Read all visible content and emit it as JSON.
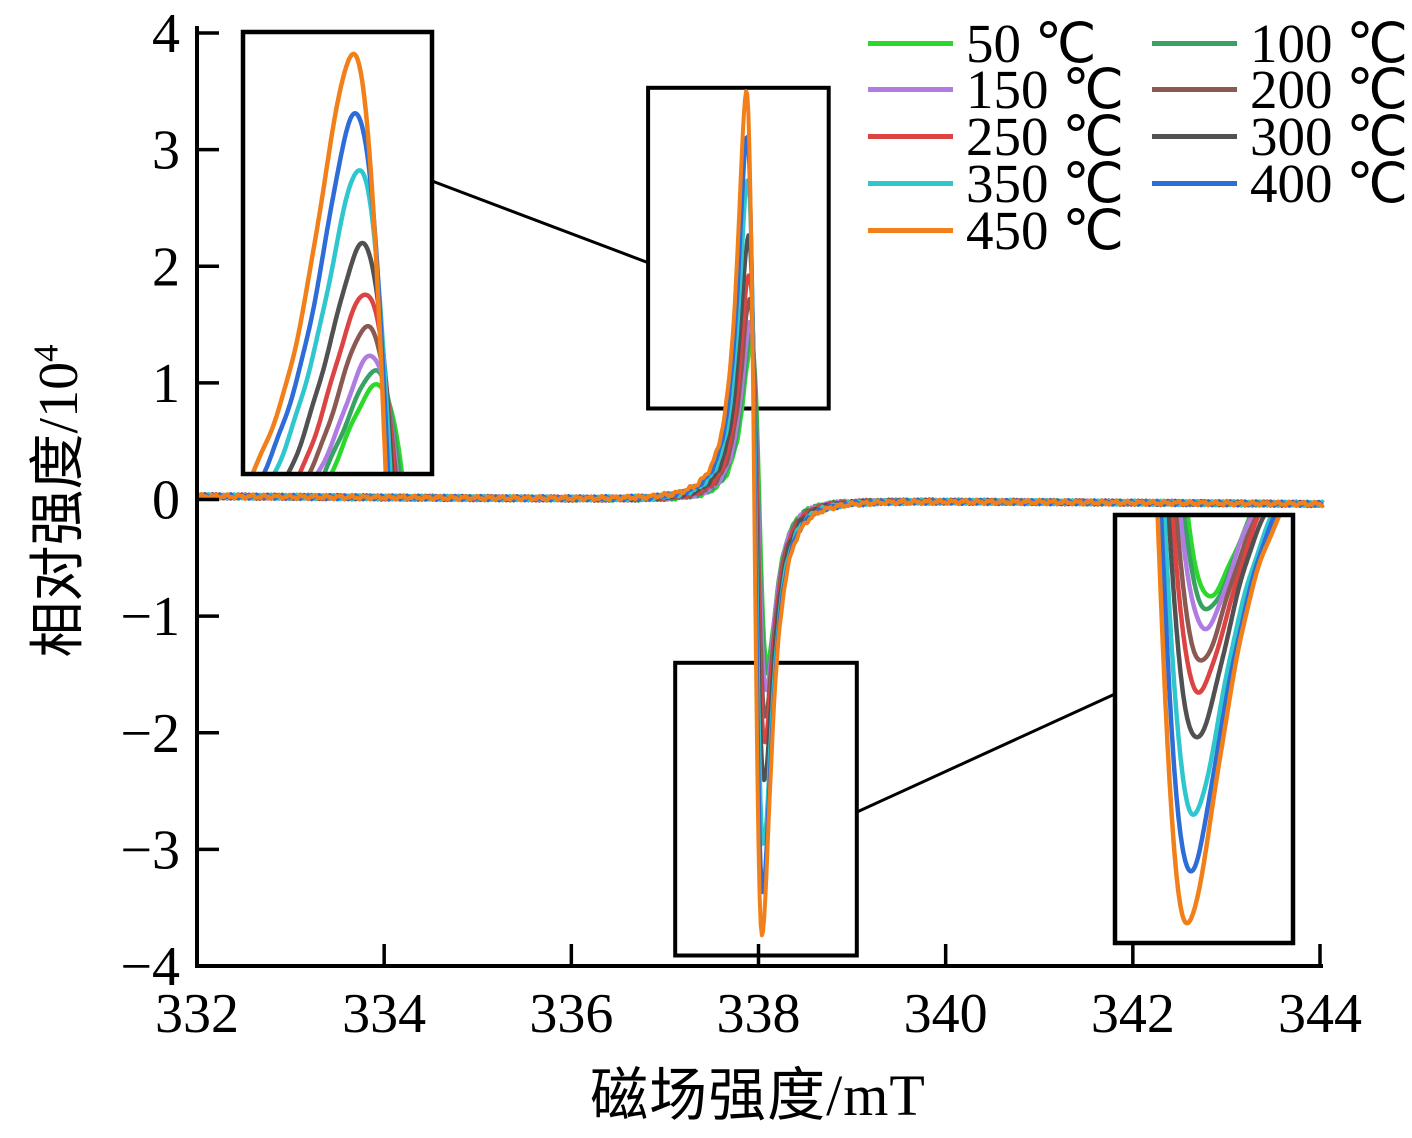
{
  "figure": {
    "x_label": "磁场强度/mT",
    "y_label_base": "相对强度/10",
    "y_label_exp": "4"
  },
  "chart_data": {
    "type": "line",
    "title": "",
    "xlabel": "磁场强度/mT",
    "ylabel": "相对强度/10⁴",
    "xlim": [
      332,
      344
    ],
    "ylim": [
      -4,
      4
    ],
    "x_ticks": [
      332,
      334,
      336,
      338,
      340,
      342,
      344
    ],
    "y_ticks": [
      4,
      3,
      2,
      1,
      0,
      -1,
      -2,
      -3,
      -4
    ],
    "grid": false,
    "legend_position": "top-right-two-columns",
    "lineshape": {
      "type": "lorentzian-derivative",
      "center_mT": 337.955,
      "half_width_mT": 0.147,
      "baseline_level_1e4": 0.0
    },
    "series": [
      {
        "name": "50 ℃",
        "color": "#2bd92b",
        "peak_height_1e4": 1.35,
        "trough_depth_1e4": -1.4,
        "center_offset_mT": 0.055
      },
      {
        "name": "100 ℃",
        "color": "#38a263",
        "peak_height_1e4": 1.43,
        "trough_depth_1e4": -1.5,
        "center_offset_mT": 0.048
      },
      {
        "name": "150 ℃",
        "color": "#b17ce1",
        "peak_height_1e4": 1.52,
        "trough_depth_1e4": -1.62,
        "center_offset_mT": 0.041
      },
      {
        "name": "200 ℃",
        "color": "#8a5a52",
        "peak_height_1e4": 1.72,
        "trough_depth_1e4": -1.85,
        "center_offset_mT": 0.034
      },
      {
        "name": "250 ℃",
        "color": "#dc4343",
        "peak_height_1e4": 1.95,
        "trough_depth_1e4": -2.08,
        "center_offset_mT": 0.028
      },
      {
        "name": "300 ℃",
        "color": "#515151",
        "peak_height_1e4": 2.26,
        "trough_depth_1e4": -2.42,
        "center_offset_mT": 0.021
      },
      {
        "name": "350 ℃",
        "color": "#2fc7cd",
        "peak_height_1e4": 2.74,
        "trough_depth_1e4": -2.95,
        "center_offset_mT": 0.014
      },
      {
        "name": "400 ℃",
        "color": "#2e6cd8",
        "peak_height_1e4": 3.12,
        "trough_depth_1e4": -3.35,
        "center_offset_mT": 0.007
      },
      {
        "name": "450 ℃",
        "color": "#f2801a",
        "peak_height_1e4": 3.52,
        "trough_depth_1e4": -3.74,
        "center_offset_mT": 0.0
      }
    ],
    "highlight_boxes": [
      {
        "region": "peak",
        "x_mT": [
          336.82,
          338.75
        ],
        "y_1e4": [
          0.78,
          3.53
        ]
      },
      {
        "region": "trough",
        "x_mT": [
          337.11,
          339.05
        ],
        "y_1e4": [
          -3.91,
          -1.4
        ]
      }
    ],
    "insets": [
      {
        "name": "peak-zoom",
        "x_window_mT": [
          337.62,
          338.05
        ],
        "y_window_1e4": [
          0.75,
          3.65
        ]
      },
      {
        "name": "trough-zoom",
        "x_window_mT": [
          337.86,
          338.3
        ],
        "y_window_1e4": [
          -3.88,
          -0.82
        ]
      }
    ]
  }
}
